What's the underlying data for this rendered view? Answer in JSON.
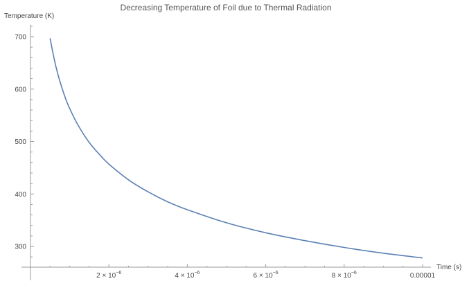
{
  "chart_data": {
    "type": "line",
    "title": "Decreasing Temperature of Foil due to Thermal Radiation",
    "xlabel": "Time (s)",
    "ylabel": "Temperature (K)",
    "xlim": [
      0,
      1e-05
    ],
    "ylim": [
      260,
      720
    ],
    "grid": false,
    "x_ticks": [
      {
        "value": 2e-06,
        "mantissa": "2.",
        "base": "× 10",
        "exp": "−6"
      },
      {
        "value": 4e-06,
        "mantissa": "4.",
        "base": "× 10",
        "exp": "−6"
      },
      {
        "value": 6e-06,
        "mantissa": "6.",
        "base": "× 10",
        "exp": "−6"
      },
      {
        "value": 8e-06,
        "mantissa": "8.",
        "base": "× 10",
        "exp": "−6"
      },
      {
        "value": 1e-05,
        "label": "0.00001"
      }
    ],
    "y_ticks": [
      300,
      400,
      500,
      600,
      700
    ],
    "series": [
      {
        "color": "#5b7fb5",
        "x": [
          5e-07,
          6e-07,
          7e-07,
          8e-07,
          9e-07,
          1e-06,
          1.2e-06,
          1.5e-06,
          1.8e-06,
          2e-06,
          2.5e-06,
          3e-06,
          3.5e-06,
          4e-06,
          5e-06,
          6e-06,
          7e-06,
          8e-06,
          9e-06,
          1e-05
        ],
        "y": [
          697,
          659,
          628,
          603,
          581,
          563,
          533,
          498,
          472,
          457,
          427,
          404,
          385,
          370,
          345,
          326,
          311,
          298,
          287,
          278
        ]
      }
    ]
  }
}
